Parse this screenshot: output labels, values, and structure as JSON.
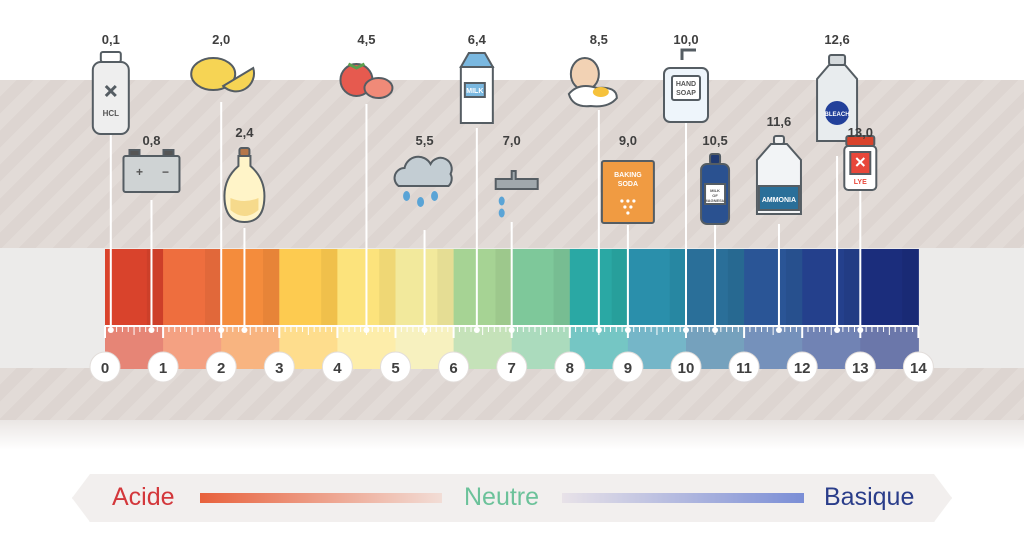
{
  "scale": {
    "ticks": [
      "0",
      "1",
      "2",
      "3",
      "4",
      "5",
      "6",
      "7",
      "8",
      "9",
      "10",
      "11",
      "12",
      "13",
      "14"
    ],
    "colors": [
      "#d9432c",
      "#ee6e3e",
      "#f48c3c",
      "#fdcb50",
      "#fce37c",
      "#f2e99c",
      "#a6d394",
      "#7ec89a",
      "#2aa8a4",
      "#2a8fab",
      "#2a6f99",
      "#2a5596",
      "#24408c",
      "#1b2d7c"
    ]
  },
  "substances": [
    {
      "value": "0,1",
      "ph": 0.1,
      "icon": "hcl-bottle-icon",
      "label": "HCL"
    },
    {
      "value": "0,8",
      "ph": 0.8,
      "icon": "battery-icon",
      "label": ""
    },
    {
      "value": "2,0",
      "ph": 2.0,
      "icon": "lemon-icon",
      "label": ""
    },
    {
      "value": "2,4",
      "ph": 2.4,
      "icon": "vinegar-jug-icon",
      "label": ""
    },
    {
      "value": "4,5",
      "ph": 4.5,
      "icon": "tomato-icon",
      "label": ""
    },
    {
      "value": "5,5",
      "ph": 5.5,
      "icon": "rain-cloud-icon",
      "label": ""
    },
    {
      "value": "6,4",
      "ph": 6.4,
      "icon": "milk-carton-icon",
      "label": "MILK"
    },
    {
      "value": "7,0",
      "ph": 7.0,
      "icon": "water-tap-icon",
      "label": ""
    },
    {
      "value": "8,5",
      "ph": 8.5,
      "icon": "egg-icon",
      "label": ""
    },
    {
      "value": "9,0",
      "ph": 9.0,
      "icon": "baking-soda-icon",
      "label": "BAKING SODA"
    },
    {
      "value": "10,0",
      "ph": 10.0,
      "icon": "hand-soap-icon",
      "label": "HAND SOAP"
    },
    {
      "value": "10,5",
      "ph": 10.5,
      "icon": "milk-of-magnesia-icon",
      "label": "MILK OF MAGNESIA"
    },
    {
      "value": "11,6",
      "ph": 11.6,
      "icon": "ammonia-bottle-icon",
      "label": "AMMONIA"
    },
    {
      "value": "12,6",
      "ph": 12.6,
      "icon": "bleach-bottle-icon",
      "label": "BLEACH"
    },
    {
      "value": "13,0",
      "ph": 13.0,
      "icon": "lye-jar-icon",
      "label": "LYE"
    }
  ],
  "legend": {
    "acid": "Acide",
    "neutral": "Neutre",
    "basic": "Basique"
  }
}
